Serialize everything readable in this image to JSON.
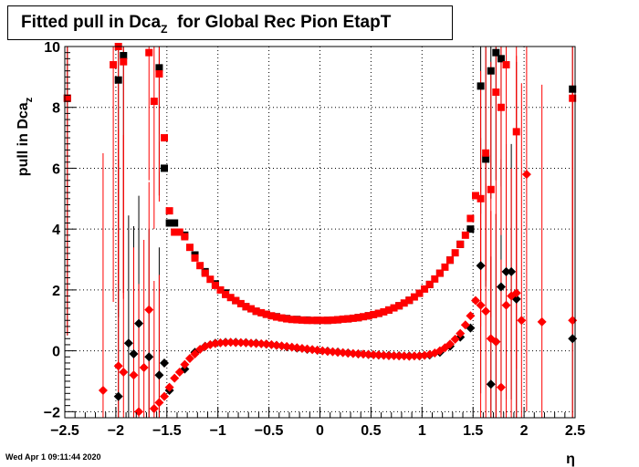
{
  "title_parts": {
    "main": "Fitted pull in Dca",
    "sub": "Z",
    "rest": "  for Global Rec Pion EtapT"
  },
  "footer": {
    "date": "Wed Apr  1 09:11:44 2020"
  },
  "colors": {
    "series_black": "#000000",
    "series_red": "#ff0000",
    "grid": "#000000",
    "axis": "#000000"
  },
  "chart_data": {
    "type": "scatter",
    "title": "Fitted pull in Dca_Z  for Global Rec Pion EtapT",
    "xlabel": "η",
    "ylabel_main": "pull in Dca",
    "ylabel_sub": "z",
    "xlim": [
      -2.5,
      2.5
    ],
    "ylim": [
      -2.2,
      10.0
    ],
    "x_ticks": [
      -2.5,
      -2,
      -1.5,
      -1,
      -0.5,
      0,
      0.5,
      1,
      1.5,
      2,
      2.5
    ],
    "x_tick_labels": [
      "−2.5",
      "−2",
      "−1.5",
      "−1",
      "−0.5",
      "0",
      "0.5",
      "1",
      "1.5",
      "2",
      "2.5"
    ],
    "y_ticks": [
      -2,
      0,
      2,
      4,
      6,
      8,
      10
    ],
    "y_tick_labels": [
      "−2",
      "0",
      "2",
      "4",
      "6",
      "8",
      "10"
    ],
    "grid": true,
    "series": [
      {
        "color": "#000000",
        "marker": "square",
        "points": [
          [
            -2.475,
            8.3
          ],
          [
            -1.975,
            8.9
          ],
          [
            -1.925,
            9.7
          ],
          [
            -1.575,
            9.3
          ],
          [
            -1.525,
            6.0
          ],
          [
            -1.475,
            4.2
          ],
          [
            -1.425,
            4.2
          ],
          [
            -1.325,
            3.8
          ],
          [
            -1.225,
            3.15
          ],
          [
            -1.125,
            2.6
          ],
          [
            -1.025,
            2.2
          ],
          [
            -0.925,
            1.9
          ],
          [
            -0.825,
            1.65
          ],
          [
            -0.725,
            1.45
          ],
          [
            -0.625,
            1.3
          ],
          [
            -0.525,
            1.2
          ],
          [
            -0.425,
            1.12
          ],
          [
            -0.325,
            1.06
          ],
          [
            -0.225,
            1.03
          ],
          [
            -0.125,
            1.01
          ],
          [
            -0.025,
            1.0
          ],
          [
            0.075,
            1.0
          ],
          [
            0.175,
            1.02
          ],
          [
            0.275,
            1.05
          ],
          [
            0.375,
            1.09
          ],
          [
            0.475,
            1.15
          ],
          [
            0.575,
            1.23
          ],
          [
            0.675,
            1.34
          ],
          [
            0.775,
            1.48
          ],
          [
            0.875,
            1.66
          ],
          [
            0.975,
            1.89
          ],
          [
            1.075,
            2.18
          ],
          [
            1.175,
            2.55
          ],
          [
            1.275,
            2.98
          ],
          [
            1.375,
            3.5
          ],
          [
            1.475,
            4.0
          ],
          [
            1.575,
            8.7
          ],
          [
            1.625,
            6.3
          ],
          [
            1.675,
            9.2
          ],
          [
            1.725,
            9.8
          ],
          [
            1.775,
            9.6
          ],
          [
            2.475,
            8.6
          ]
        ]
      },
      {
        "color": "#000000",
        "marker": "diamond",
        "points": [
          [
            -1.975,
            -1.5
          ],
          [
            -1.875,
            0.25
          ],
          [
            -1.825,
            -0.1
          ],
          [
            -1.775,
            0.9
          ],
          [
            -1.675,
            -0.2
          ],
          [
            -1.575,
            -0.8
          ],
          [
            -1.525,
            -0.4
          ],
          [
            -1.475,
            -1.3
          ],
          [
            -1.325,
            -0.6
          ],
          [
            -1.225,
            -0.05
          ],
          [
            -1.125,
            0.15
          ],
          [
            -1.025,
            0.25
          ],
          [
            -0.925,
            0.28
          ],
          [
            -0.825,
            0.28
          ],
          [
            -0.725,
            0.27
          ],
          [
            -0.625,
            0.25
          ],
          [
            -0.525,
            0.22
          ],
          [
            -0.425,
            0.18
          ],
          [
            -0.325,
            0.13
          ],
          [
            -0.225,
            0.09
          ],
          [
            -0.125,
            0.05
          ],
          [
            -0.025,
            0.02
          ],
          [
            0.075,
            -0.01
          ],
          [
            0.175,
            -0.04
          ],
          [
            0.275,
            -0.07
          ],
          [
            0.375,
            -0.1
          ],
          [
            0.475,
            -0.12
          ],
          [
            0.575,
            -0.14
          ],
          [
            0.675,
            -0.15
          ],
          [
            0.775,
            -0.16
          ],
          [
            0.875,
            -0.17
          ],
          [
            0.975,
            -0.17
          ],
          [
            1.075,
            -0.14
          ],
          [
            1.175,
            -0.05
          ],
          [
            1.275,
            0.15
          ],
          [
            1.375,
            0.45
          ],
          [
            1.475,
            0.75
          ],
          [
            1.575,
            2.8
          ],
          [
            1.675,
            -1.1
          ],
          [
            1.725,
            0.3
          ],
          [
            1.775,
            2.1
          ],
          [
            1.825,
            2.6
          ],
          [
            1.875,
            2.6
          ],
          [
            1.925,
            1.7
          ],
          [
            2.475,
            0.4
          ]
        ]
      },
      {
        "color": "#ff0000",
        "marker": "square",
        "points": [
          [
            -2.475,
            8.3
          ],
          [
            -2.025,
            9.4
          ],
          [
            -1.975,
            10.0
          ],
          [
            -1.925,
            9.5
          ],
          [
            -1.675,
            9.8
          ],
          [
            -1.625,
            8.2
          ],
          [
            -1.575,
            9.1
          ],
          [
            -1.525,
            7.0
          ],
          [
            -1.475,
            4.6
          ],
          [
            -1.425,
            3.9
          ],
          [
            -1.375,
            3.9
          ],
          [
            -1.325,
            3.75
          ],
          [
            -1.275,
            3.4
          ],
          [
            -1.225,
            3.05
          ],
          [
            -1.175,
            2.8
          ],
          [
            -1.125,
            2.55
          ],
          [
            -1.075,
            2.35
          ],
          [
            -1.025,
            2.15
          ],
          [
            -0.975,
            2.0
          ],
          [
            -0.925,
            1.85
          ],
          [
            -0.875,
            1.75
          ],
          [
            -0.825,
            1.65
          ],
          [
            -0.775,
            1.55
          ],
          [
            -0.725,
            1.45
          ],
          [
            -0.675,
            1.38
          ],
          [
            -0.625,
            1.3
          ],
          [
            -0.575,
            1.25
          ],
          [
            -0.525,
            1.2
          ],
          [
            -0.475,
            1.15
          ],
          [
            -0.425,
            1.11
          ],
          [
            -0.375,
            1.08
          ],
          [
            -0.325,
            1.05
          ],
          [
            -0.275,
            1.03
          ],
          [
            -0.225,
            1.02
          ],
          [
            -0.175,
            1.01
          ],
          [
            -0.125,
            1.0
          ],
          [
            -0.075,
            1.0
          ],
          [
            -0.025,
            1.0
          ],
          [
            0.025,
            1.0
          ],
          [
            0.075,
            1.0
          ],
          [
            0.125,
            1.01
          ],
          [
            0.175,
            1.02
          ],
          [
            0.225,
            1.04
          ],
          [
            0.275,
            1.05
          ],
          [
            0.325,
            1.07
          ],
          [
            0.375,
            1.09
          ],
          [
            0.425,
            1.12
          ],
          [
            0.475,
            1.15
          ],
          [
            0.525,
            1.19
          ],
          [
            0.575,
            1.23
          ],
          [
            0.625,
            1.28
          ],
          [
            0.675,
            1.34
          ],
          [
            0.725,
            1.41
          ],
          [
            0.775,
            1.48
          ],
          [
            0.825,
            1.57
          ],
          [
            0.875,
            1.66
          ],
          [
            0.925,
            1.77
          ],
          [
            0.975,
            1.89
          ],
          [
            1.025,
            2.03
          ],
          [
            1.075,
            2.18
          ],
          [
            1.125,
            2.36
          ],
          [
            1.175,
            2.55
          ],
          [
            1.225,
            2.75
          ],
          [
            1.275,
            2.98
          ],
          [
            1.325,
            3.22
          ],
          [
            1.375,
            3.5
          ],
          [
            1.425,
            3.8
          ],
          [
            1.475,
            4.35
          ],
          [
            1.525,
            5.1
          ],
          [
            1.575,
            5.0
          ],
          [
            1.625,
            6.5
          ],
          [
            1.675,
            5.3
          ],
          [
            1.725,
            8.5
          ],
          [
            1.775,
            8.0
          ],
          [
            1.825,
            9.4
          ],
          [
            1.925,
            7.2
          ],
          [
            2.475,
            8.3
          ]
        ]
      },
      {
        "color": "#ff0000",
        "marker": "diamond",
        "points": [
          [
            -2.125,
            -1.3
          ],
          [
            -1.975,
            -0.5
          ],
          [
            -1.925,
            -0.7
          ],
          [
            -1.825,
            -0.8
          ],
          [
            -1.775,
            -2.0
          ],
          [
            -1.725,
            -0.55
          ],
          [
            -1.675,
            1.35
          ],
          [
            -1.625,
            -1.9
          ],
          [
            -1.575,
            -1.7
          ],
          [
            -1.525,
            -1.5
          ],
          [
            -1.475,
            -1.2
          ],
          [
            -1.425,
            -0.9
          ],
          [
            -1.375,
            -0.7
          ],
          [
            -1.325,
            -0.45
          ],
          [
            -1.275,
            -0.25
          ],
          [
            -1.225,
            -0.1
          ],
          [
            -1.175,
            0.05
          ],
          [
            -1.125,
            0.14
          ],
          [
            -1.075,
            0.2
          ],
          [
            -1.025,
            0.24
          ],
          [
            -0.975,
            0.26
          ],
          [
            -0.925,
            0.27
          ],
          [
            -0.875,
            0.28
          ],
          [
            -0.825,
            0.27
          ],
          [
            -0.775,
            0.27
          ],
          [
            -0.725,
            0.26
          ],
          [
            -0.675,
            0.25
          ],
          [
            -0.625,
            0.24
          ],
          [
            -0.575,
            0.23
          ],
          [
            -0.525,
            0.22
          ],
          [
            -0.475,
            0.2
          ],
          [
            -0.425,
            0.18
          ],
          [
            -0.375,
            0.16
          ],
          [
            -0.325,
            0.14
          ],
          [
            -0.275,
            0.12
          ],
          [
            -0.225,
            0.1
          ],
          [
            -0.175,
            0.08
          ],
          [
            -0.125,
            0.06
          ],
          [
            -0.075,
            0.04
          ],
          [
            -0.025,
            0.02
          ],
          [
            0.025,
            0.0
          ],
          [
            0.075,
            -0.02
          ],
          [
            0.125,
            -0.03
          ],
          [
            0.175,
            -0.05
          ],
          [
            0.225,
            -0.06
          ],
          [
            0.275,
            -0.08
          ],
          [
            0.325,
            -0.09
          ],
          [
            0.375,
            -0.1
          ],
          [
            0.425,
            -0.11
          ],
          [
            0.475,
            -0.12
          ],
          [
            0.525,
            -0.13
          ],
          [
            0.575,
            -0.14
          ],
          [
            0.625,
            -0.15
          ],
          [
            0.675,
            -0.16
          ],
          [
            0.725,
            -0.16
          ],
          [
            0.775,
            -0.17
          ],
          [
            0.825,
            -0.17
          ],
          [
            0.875,
            -0.18
          ],
          [
            0.925,
            -0.17
          ],
          [
            0.975,
            -0.17
          ],
          [
            1.025,
            -0.15
          ],
          [
            1.075,
            -0.12
          ],
          [
            1.125,
            -0.07
          ],
          [
            1.175,
            0.0
          ],
          [
            1.225,
            0.1
          ],
          [
            1.275,
            0.22
          ],
          [
            1.325,
            0.38
          ],
          [
            1.375,
            0.57
          ],
          [
            1.425,
            0.85
          ],
          [
            1.475,
            1.15
          ],
          [
            1.525,
            1.65
          ],
          [
            1.575,
            1.5
          ],
          [
            1.625,
            1.3
          ],
          [
            1.675,
            0.4
          ],
          [
            1.725,
            0.3
          ],
          [
            1.775,
            -1.2
          ],
          [
            1.825,
            1.5
          ],
          [
            1.875,
            1.8
          ],
          [
            1.925,
            1.9
          ],
          [
            1.975,
            1.0
          ],
          [
            2.025,
            5.8
          ],
          [
            2.175,
            0.95
          ],
          [
            2.475,
            1.0
          ]
        ]
      }
    ]
  }
}
